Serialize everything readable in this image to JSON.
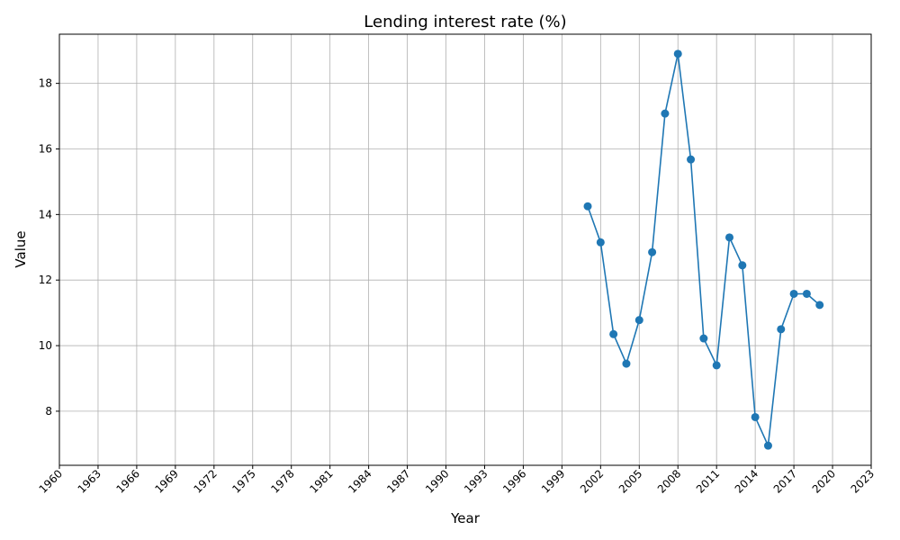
{
  "chart_data": {
    "type": "line",
    "title": "Lending interest rate (%)",
    "xlabel": "Year",
    "ylabel": "Value",
    "xlim": [
      1960,
      2023
    ],
    "ylim": [
      6.35,
      19.5
    ],
    "xticks": [
      1960,
      1963,
      1966,
      1969,
      1972,
      1975,
      1978,
      1981,
      1984,
      1987,
      1990,
      1993,
      1996,
      1999,
      2002,
      2005,
      2008,
      2011,
      2014,
      2017,
      2020,
      2023
    ],
    "yticks": [
      8,
      10,
      12,
      14,
      16,
      18
    ],
    "grid": true,
    "color": "#1f77b4",
    "series": [
      {
        "x": [
          2001,
          2002,
          2003,
          2004,
          2005,
          2006,
          2007,
          2008,
          2009,
          2010,
          2011,
          2012,
          2013,
          2014,
          2015,
          2016,
          2017,
          2018,
          2019
        ],
        "values": [
          14.25,
          13.15,
          10.35,
          9.45,
          10.78,
          12.85,
          17.08,
          18.9,
          15.68,
          10.22,
          9.4,
          13.3,
          12.45,
          7.82,
          6.95,
          10.5,
          11.58,
          11.58,
          11.24
        ]
      }
    ]
  }
}
